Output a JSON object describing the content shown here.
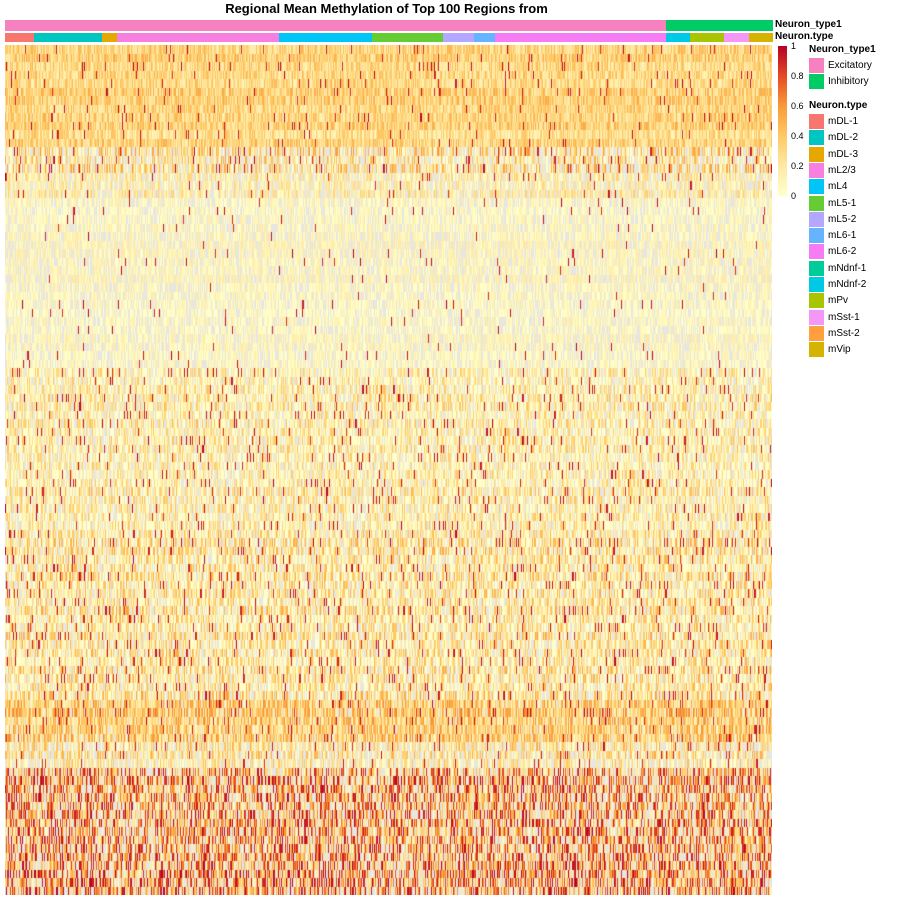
{
  "chart_data": {
    "type": "heatmap",
    "title": "Regional Mean Methylation of Top 100 Regions from",
    "value_range": [
      0,
      1
    ],
    "n_regions": 100,
    "n_cells": 767,
    "missing_color": "#e8e6e1",
    "color_scale": [
      {
        "value": 0,
        "color": "#ffffcc"
      },
      {
        "value": 0.2,
        "color": "#fee9a3"
      },
      {
        "value": 0.4,
        "color": "#fec965"
      },
      {
        "value": 0.6,
        "color": "#f99a39"
      },
      {
        "value": 0.8,
        "color": "#e34a25"
      },
      {
        "value": 1,
        "color": "#b70024"
      }
    ],
    "colorbar_ticks": [
      "1",
      "0.8",
      "0.6",
      "0.4",
      "0.2",
      "0"
    ],
    "annotation_labels": [
      "Neuron_type1",
      "Neuron.type"
    ],
    "neuron_type1_segments": [
      {
        "label": "Excitatory",
        "cells": 661
      },
      {
        "label": "Inhibitory",
        "cells": 106
      }
    ],
    "neuron_type_segments": [
      {
        "label": "mDL-1",
        "cells": 29
      },
      {
        "label": "mDL-2",
        "cells": 68
      },
      {
        "label": "mDL-3",
        "cells": 15
      },
      {
        "label": "mL2/3",
        "cells": 162
      },
      {
        "label": "mL4",
        "cells": 93
      },
      {
        "label": "mL5-1",
        "cells": 71
      },
      {
        "label": "mL5-2",
        "cells": 31
      },
      {
        "label": "mL6-1",
        "cells": 21
      },
      {
        "label": "mL6-2",
        "cells": 171
      },
      {
        "label": "mNdnf-2",
        "cells": 24
      },
      {
        "label": "mPv",
        "cells": 34
      },
      {
        "label": "mSst-1",
        "cells": 25
      },
      {
        "label": "mVip",
        "cells": 23
      }
    ],
    "row_bands": [
      {
        "rows": 12,
        "level": 0.3,
        "missing": 0.0,
        "spread": 0.2
      },
      {
        "rows": 3,
        "level": 0.25,
        "missing": 0.3,
        "spread": 0.35
      },
      {
        "rows": 3,
        "level": 0.15,
        "missing": 0.25,
        "spread": 0.2
      },
      {
        "rows": 20,
        "level": 0.08,
        "missing": 0.3,
        "spread": 0.1
      },
      {
        "rows": 20,
        "level": 0.15,
        "missing": 0.2,
        "spread": 0.3
      },
      {
        "rows": 19,
        "level": 0.18,
        "missing": 0.18,
        "spread": 0.35
      },
      {
        "rows": 5,
        "level": 0.35,
        "missing": 0.05,
        "spread": 0.3
      },
      {
        "rows": 3,
        "level": 0.2,
        "missing": 0.3,
        "spread": 0.3
      },
      {
        "rows": 15,
        "level": 0.5,
        "missing": 0.25,
        "spread": 0.5
      }
    ]
  },
  "legend": {
    "type1_title": "Neuron_type1",
    "type1_items": [
      {
        "label": "Excitatory",
        "color": "#f781bf"
      },
      {
        "label": "Inhibitory",
        "color": "#00cc66"
      }
    ],
    "type_title": "Neuron.type",
    "type_items": [
      {
        "label": "mDL-1",
        "color": "#f8766d"
      },
      {
        "label": "mDL-2",
        "color": "#00c5c0"
      },
      {
        "label": "mDL-3",
        "color": "#e6a800"
      },
      {
        "label": "mL2/3",
        "color": "#f77fe0"
      },
      {
        "label": "mL4",
        "color": "#00c6f8"
      },
      {
        "label": "mL5-1",
        "color": "#66cc33"
      },
      {
        "label": "mL5-2",
        "color": "#b3a7ff"
      },
      {
        "label": "mL6-1",
        "color": "#66b3ff"
      },
      {
        "label": "mL6-2",
        "color": "#f57cf2"
      },
      {
        "label": "mNdnf-1",
        "color": "#00cc99"
      },
      {
        "label": "mNdnf-2",
        "color": "#00c9e6"
      },
      {
        "label": "mPv",
        "color": "#a9c400"
      },
      {
        "label": "mSst-1",
        "color": "#f497f7"
      },
      {
        "label": "mSst-2",
        "color": "#ff9f40"
      },
      {
        "label": "mVip",
        "color": "#d4b400"
      }
    ]
  }
}
